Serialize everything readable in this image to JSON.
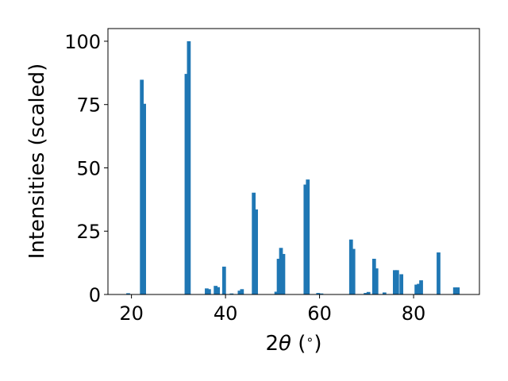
{
  "chart_data": {
    "type": "bar",
    "title": "",
    "xlabel_prefix": "2",
    "xlabel_theta": "θ",
    "xlabel_unit": " (",
    "xlabel_degree": "∘",
    "xlabel_close": ")",
    "ylabel": "Intensities (scaled)",
    "xlim": [
      15,
      94
    ],
    "ylim": [
      0,
      105
    ],
    "xticks": [
      20,
      40,
      60,
      80
    ],
    "yticks": [
      0,
      25,
      50,
      75,
      100
    ],
    "grid": false,
    "bar_color": "#1f77b4",
    "bar_width": 0.8,
    "x": [
      19.3,
      22.2,
      22.7,
      31.7,
      32.2,
      36.0,
      36.5,
      37.9,
      38.4,
      39.7,
      41.3,
      43.0,
      43.5,
      46.0,
      46.5,
      50.8,
      51.3,
      51.8,
      52.3,
      57.0,
      57.5,
      59.7,
      60.4,
      66.7,
      67.2,
      69.8,
      70.4,
      71.6,
      72.1,
      73.8,
      76.0,
      76.5,
      77.4,
      80.6,
      81.1,
      81.6,
      85.3,
      88.8,
      89.4
    ],
    "values": [
      0.5,
      84.8,
      75.3,
      87.1,
      100.0,
      2.4,
      2.1,
      3.4,
      2.9,
      11.0,
      0.4,
      1.5,
      2.1,
      40.2,
      33.6,
      1.1,
      14.1,
      18.4,
      16.0,
      43.4,
      45.4,
      0.6,
      0.4,
      21.7,
      18.0,
      0.6,
      1.0,
      14.1,
      10.3,
      0.8,
      9.6,
      9.6,
      8.0,
      3.9,
      4.2,
      5.6,
      16.6,
      2.8,
      2.8
    ]
  }
}
